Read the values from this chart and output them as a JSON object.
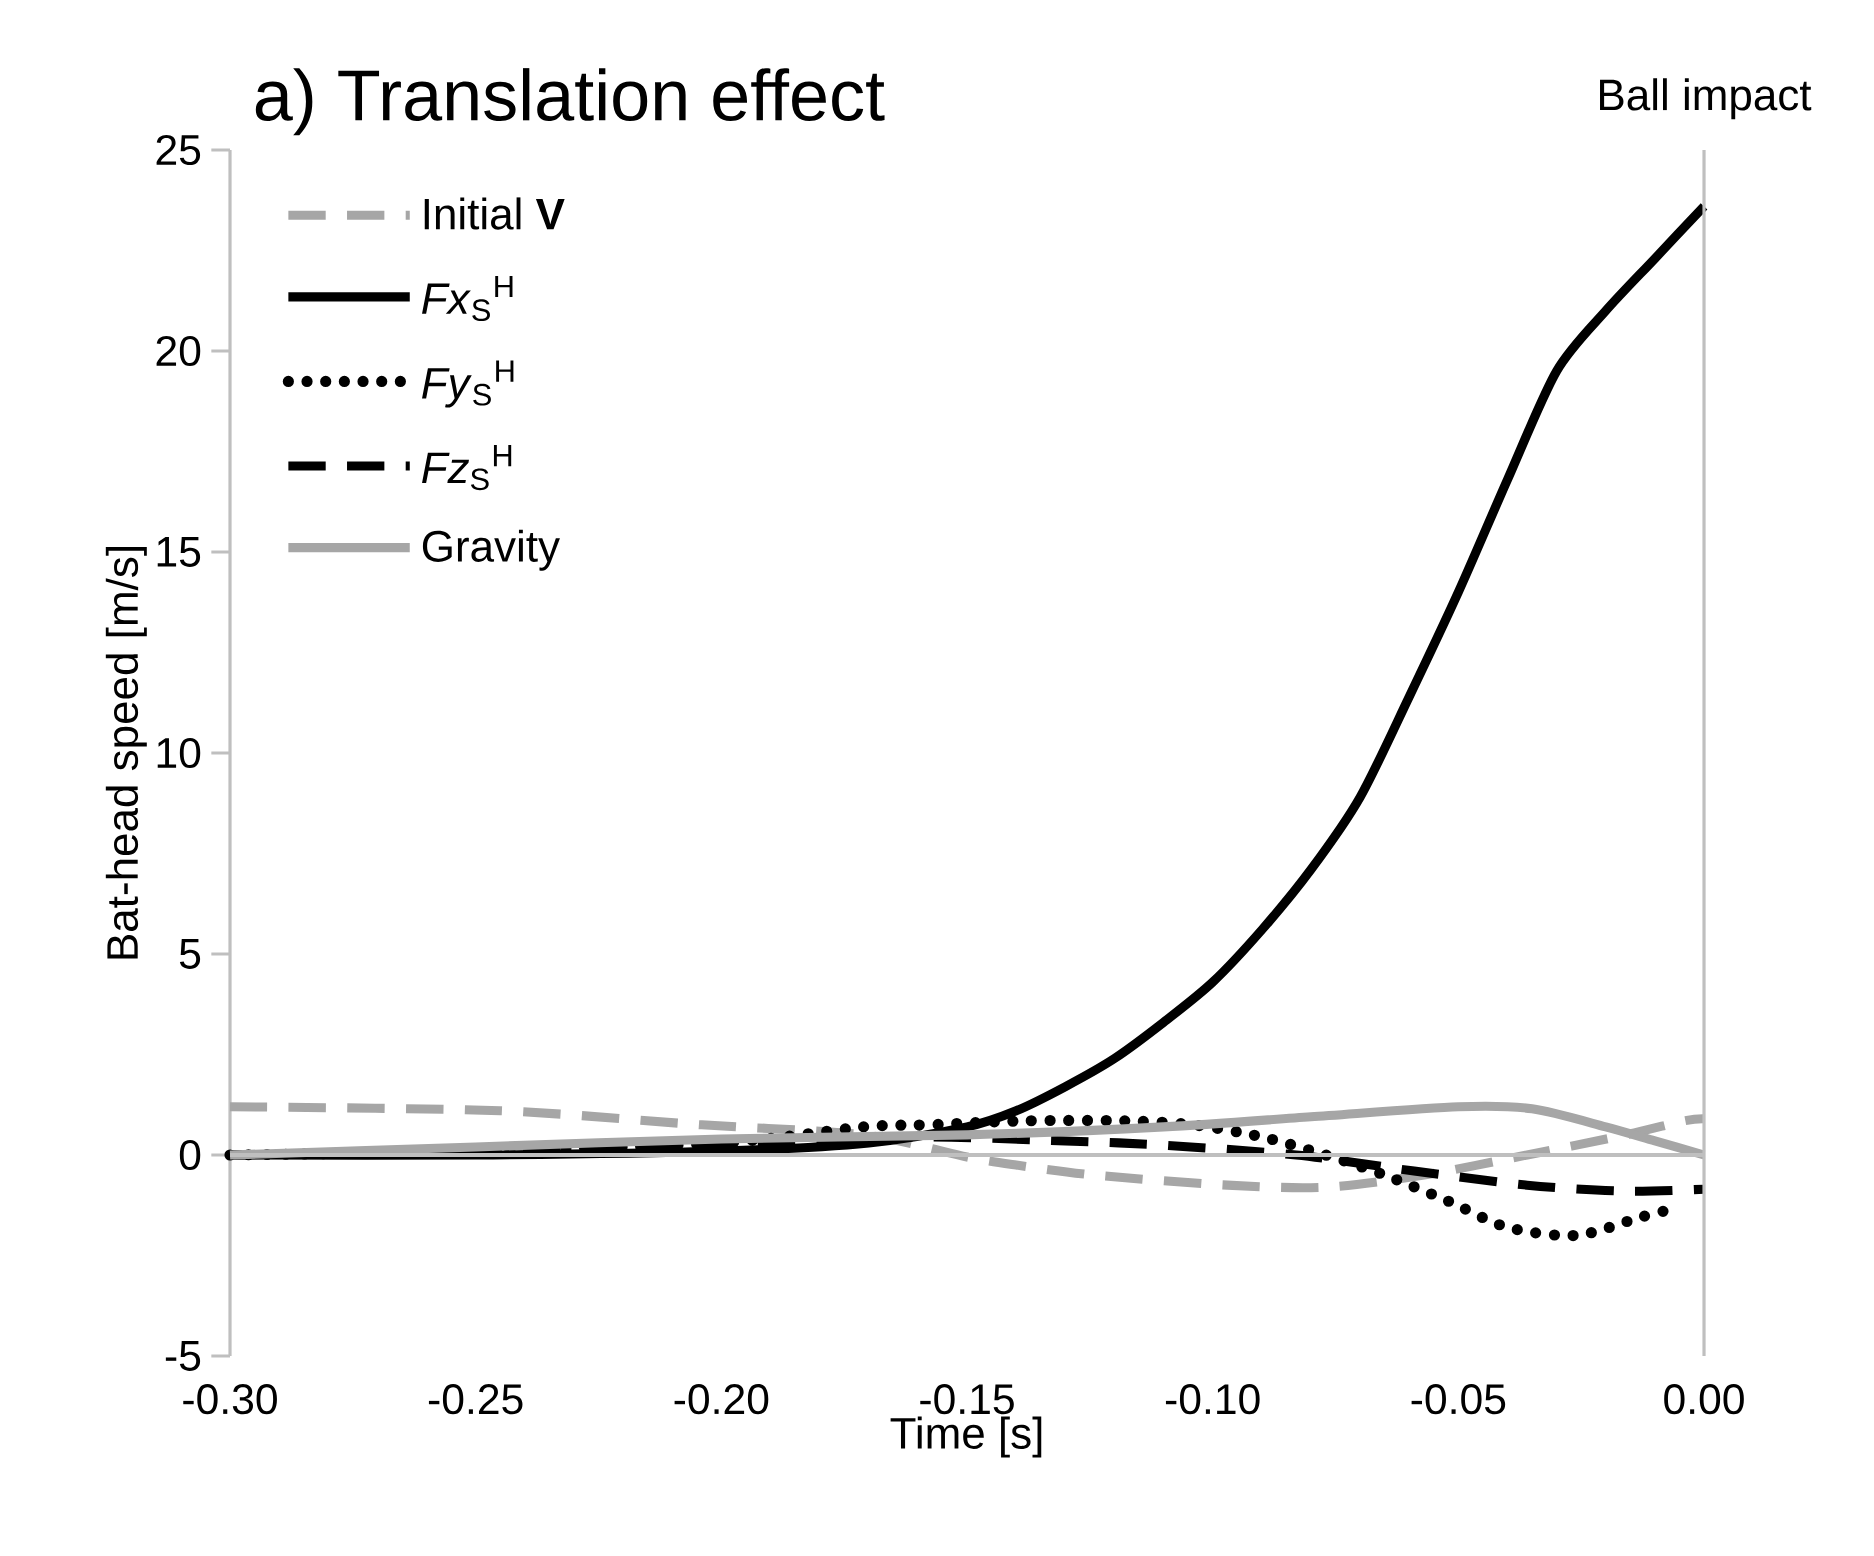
{
  "chart_data": {
    "type": "line",
    "title": "a) Translation effect",
    "xlabel": "Time [s]",
    "ylabel": "Bat-head speed [m/s]",
    "xlim": [
      -0.3,
      0
    ],
    "ylim": [
      -5,
      25
    ],
    "xticks": [
      {
        "value": -0.3,
        "label": "-0.30"
      },
      {
        "value": -0.25,
        "label": "-0.25"
      },
      {
        "value": -0.2,
        "label": "-0.20"
      },
      {
        "value": -0.15,
        "label": "-0.15"
      },
      {
        "value": -0.1,
        "label": "-0.10"
      },
      {
        "value": -0.05,
        "label": "-0.05"
      },
      {
        "value": 0,
        "label": "0.00"
      }
    ],
    "yticks": [
      -5,
      0,
      5,
      10,
      15,
      20,
      25
    ],
    "grid": false,
    "legend": "top left",
    "annotations": [
      "Ball impact"
    ],
    "ref_lines": [
      {
        "axis": "y",
        "value": 0,
        "color": "#bfbfbf"
      }
    ],
    "series": [
      {
        "name": "Initial **V**",
        "color": "#a6a6a6",
        "line_style": "dashed",
        "x": [
          -0.3,
          -0.245,
          -0.204,
          -0.171,
          -0.15,
          -0.14,
          -0.124,
          -0.097,
          -0.077,
          -0.057,
          -0.036,
          -0.016,
          -0.004,
          0
        ],
        "values": [
          1.2,
          1.1,
          0.75,
          0.5,
          -0.05,
          -0.25,
          -0.5,
          -0.75,
          -0.8,
          -0.5,
          0,
          0.5,
          0.85,
          0.9
        ]
      },
      {
        "name": "*Fx*$_{S}$$^{H}$",
        "color": "#000000",
        "line_style": "solid",
        "x": [
          -0.3,
          -0.25,
          -0.2,
          -0.17,
          -0.15,
          -0.14,
          -0.13,
          -0.12,
          -0.11,
          -0.1,
          -0.09,
          -0.08,
          -0.07,
          -0.06,
          -0.05,
          -0.04,
          -0.03,
          -0.02,
          -0.01,
          0
        ],
        "values": [
          0,
          0,
          0.1,
          0.3,
          0.7,
          1.1,
          1.7,
          2.4,
          3.3,
          4.3,
          5.6,
          7.1,
          8.9,
          11.4,
          14.0,
          16.8,
          19.5,
          21.0,
          22.3,
          23.6
        ]
      },
      {
        "name": "*Fy*$_{S}$$^{H}$",
        "color": "#000000",
        "line_style": "dotted",
        "x": [
          -0.3,
          -0.25,
          -0.2,
          -0.171,
          -0.158,
          -0.138,
          -0.118,
          -0.104,
          -0.09,
          -0.077,
          -0.065,
          -0.052,
          -0.04,
          -0.026,
          -0.013,
          -0.005
        ],
        "values": [
          0,
          0.1,
          0.3,
          0.7,
          0.75,
          0.85,
          0.85,
          0.75,
          0.45,
          0,
          -0.5,
          -1.15,
          -1.8,
          -2.0,
          -1.55,
          -1.3
        ]
      },
      {
        "name": "*Fz*$_{S}$$^{H}$",
        "color": "#000000",
        "line_style": "dashed",
        "x": [
          -0.3,
          -0.25,
          -0.2,
          -0.16,
          -0.13,
          -0.111,
          -0.083,
          -0.059,
          -0.036,
          -0.016,
          0
        ],
        "values": [
          0,
          0.1,
          0.3,
          0.45,
          0.35,
          0.25,
          0,
          -0.4,
          -0.75,
          -0.9,
          -0.85
        ]
      },
      {
        "name": "Gravity",
        "color": "#a6a6a6",
        "line_style": "solid",
        "x": [
          -0.3,
          -0.25,
          -0.2,
          -0.15,
          -0.11,
          -0.08,
          -0.05,
          -0.035,
          -0.02,
          -0.01,
          0
        ],
        "values": [
          0,
          0.2,
          0.4,
          0.5,
          0.7,
          0.95,
          1.2,
          1.15,
          0.7,
          0.35,
          0
        ]
      }
    ]
  }
}
